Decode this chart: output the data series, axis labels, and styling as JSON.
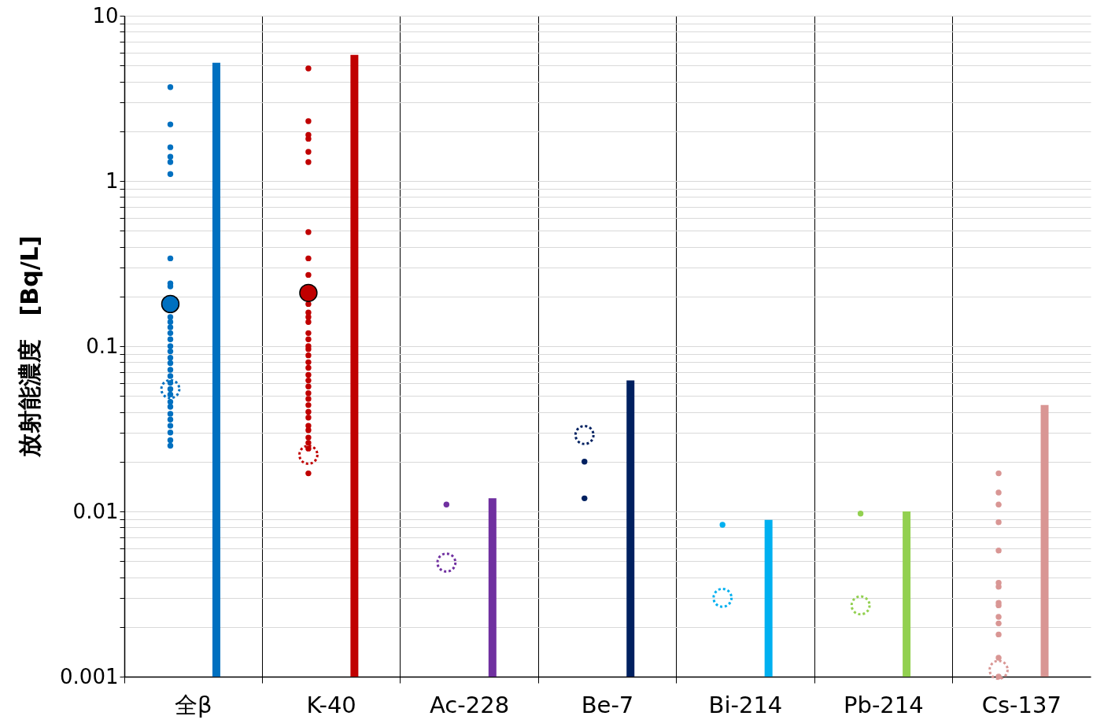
{
  "chart_data": {
    "type": "bar",
    "ylabel": "放射能濃度　[Bq/L]",
    "categories": [
      "全β",
      "K-40",
      "Ac-228",
      "Be-7",
      "Bi-214",
      "Pb-214",
      "Cs-137"
    ],
    "log": "y",
    "grid": true,
    "ylim": [
      0.001,
      10
    ],
    "yticks": [
      0.001,
      {
        "value": 0.002,
        "label": null
      },
      {
        "value": 0.003,
        "label": null
      },
      {
        "value": 0.004,
        "label": null
      },
      {
        "value": 0.005,
        "label": null
      },
      {
        "value": 0.006,
        "label": null
      },
      {
        "value": 0.007,
        "label": null
      },
      {
        "value": 0.008,
        "label": null
      },
      {
        "value": 0.009,
        "label": null
      },
      0.01,
      {
        "value": 0.02,
        "label": null
      },
      {
        "value": 0.03,
        "label": null
      },
      {
        "value": 0.04,
        "label": null
      },
      {
        "value": 0.05,
        "label": null
      },
      {
        "value": 0.06,
        "label": null
      },
      {
        "value": 0.07,
        "label": null
      },
      {
        "value": 0.08,
        "label": null
      },
      {
        "value": 0.09,
        "label": null
      },
      0.1,
      {
        "value": 0.2,
        "label": null
      },
      {
        "value": 0.3,
        "label": null
      },
      {
        "value": 0.4,
        "label": null
      },
      {
        "value": 0.5,
        "label": null
      },
      {
        "value": 0.6,
        "label": null
      },
      {
        "value": 0.7,
        "label": null
      },
      {
        "value": 0.8,
        "label": null
      },
      {
        "value": 0.9,
        "label": null
      },
      1,
      {
        "value": 2,
        "label": null
      },
      {
        "value": 3,
        "label": null
      },
      {
        "value": 4,
        "label": null
      },
      {
        "value": 5,
        "label": null
      },
      {
        "value": 6,
        "label": null
      },
      {
        "value": 7,
        "label": null
      },
      {
        "value": 8,
        "label": null
      },
      {
        "value": 9,
        "label": null
      },
      10
    ],
    "series": [
      {
        "values": [
          5.2,
          5.8,
          0.012,
          0.062,
          0.0089,
          0.01,
          0.044
        ],
        "colors": [
          "#0070c0",
          "#c00000",
          "#7030a0",
          "#002060",
          "#00b0f0",
          "#92d050",
          "#d99694"
        ]
      },
      {
        "type": "scatter",
        "marker": "circle",
        "color": "#0070c0",
        "x": [
          "全β",
          "全β",
          "全β",
          "全β",
          "全β",
          "全β",
          "全β",
          "全β",
          "全β",
          "全β",
          "全β",
          "全β",
          "全β",
          "全β",
          "全β",
          "全β",
          "全β",
          "全β",
          "全β",
          "全β",
          "全β",
          "全β",
          "全β",
          "全β",
          "全β",
          "全β",
          "全β",
          "全β",
          "全β",
          "全β",
          "全β"
        ],
        "values": [
          3.7,
          2.2,
          1.6,
          1.4,
          1.3,
          1.1,
          0.34,
          0.24,
          0.23,
          0.15,
          0.14,
          0.13,
          0.12,
          0.11,
          0.1,
          0.093,
          0.085,
          0.079,
          0.072,
          0.066,
          0.06,
          0.055,
          0.051,
          0.046,
          0.043,
          0.039,
          0.036,
          0.033,
          0.03,
          0.027,
          0.025
        ]
      },
      {
        "type": "scatter",
        "marker": "circle",
        "color": "#c00000",
        "x": [
          "K-40",
          "K-40",
          "K-40",
          "K-40",
          "K-40",
          "K-40",
          "K-40",
          "K-40",
          "K-40",
          "K-40",
          "K-40",
          "K-40",
          "K-40",
          "K-40",
          "K-40",
          "K-40",
          "K-40",
          "K-40",
          "K-40",
          "K-40",
          "K-40",
          "K-40",
          "K-40",
          "K-40",
          "K-40",
          "K-40",
          "K-40",
          "K-40",
          "K-40",
          "K-40",
          "K-40",
          "K-40",
          "K-40",
          "K-40"
        ],
        "values": [
          4.8,
          2.3,
          1.9,
          1.8,
          1.5,
          1.3,
          0.49,
          0.34,
          0.27,
          0.18,
          0.16,
          0.15,
          0.14,
          0.12,
          0.11,
          0.1,
          0.096,
          0.088,
          0.08,
          0.074,
          0.067,
          0.062,
          0.057,
          0.052,
          0.048,
          0.044,
          0.04,
          0.037,
          0.033,
          0.031,
          0.028,
          0.026,
          0.024,
          0.017
        ]
      },
      {
        "type": "scatter",
        "marker": "circle",
        "color": "#7030a0",
        "x": [
          "Ac-228"
        ],
        "values": [
          0.011
        ]
      },
      {
        "type": "scatter",
        "marker": "circle",
        "color": "#002060",
        "x": [
          "Be-7",
          "Be-7"
        ],
        "values": [
          0.02,
          0.012
        ]
      },
      {
        "type": "scatter",
        "marker": "circle",
        "color": "#00b0f0",
        "x": [
          "Bi-214"
        ],
        "values": [
          0.0083
        ]
      },
      {
        "type": "scatter",
        "marker": "circle",
        "color": "#92d050",
        "x": [
          "Pb-214"
        ],
        "values": [
          0.0097
        ]
      },
      {
        "type": "scatter",
        "marker": "circle",
        "color": "#d99694",
        "x": [
          "Cs-137",
          "Cs-137",
          "Cs-137",
          "Cs-137",
          "Cs-137",
          "Cs-137",
          "Cs-137",
          "Cs-137",
          "Cs-137",
          "Cs-137",
          "Cs-137",
          "Cs-137",
          "Cs-137",
          "Cs-137"
        ],
        "values": [
          0.017,
          0.013,
          0.011,
          0.0086,
          0.0058,
          0.0037,
          0.0035,
          0.0028,
          0.0027,
          0.0023,
          0.0021,
          0.0018,
          0.0013,
          0.001
        ]
      },
      {
        "type": "scatter",
        "marker": "circle",
        "line_style": "dotted",
        "x": [
          "全β",
          "K-40",
          "Ac-228",
          "Be-7",
          "Bi-214",
          "Pb-214",
          "Cs-137"
        ],
        "values": [
          0.055,
          0.022,
          0.0049,
          0.029,
          0.003,
          0.0027,
          0.0011
        ],
        "colors": [
          "#0070c0",
          "#c00000",
          "#7030a0",
          "#002060",
          "#00b0f0",
          "#92d050",
          "#d99694"
        ]
      },
      {
        "type": "bubble",
        "marker": "circle",
        "x": [
          "全β",
          "K-40"
        ],
        "values": [
          0.18,
          0.21
        ],
        "sizes": [
          1,
          1
        ],
        "colors": [
          "#0070c0",
          "#c00000"
        ]
      }
    ]
  }
}
